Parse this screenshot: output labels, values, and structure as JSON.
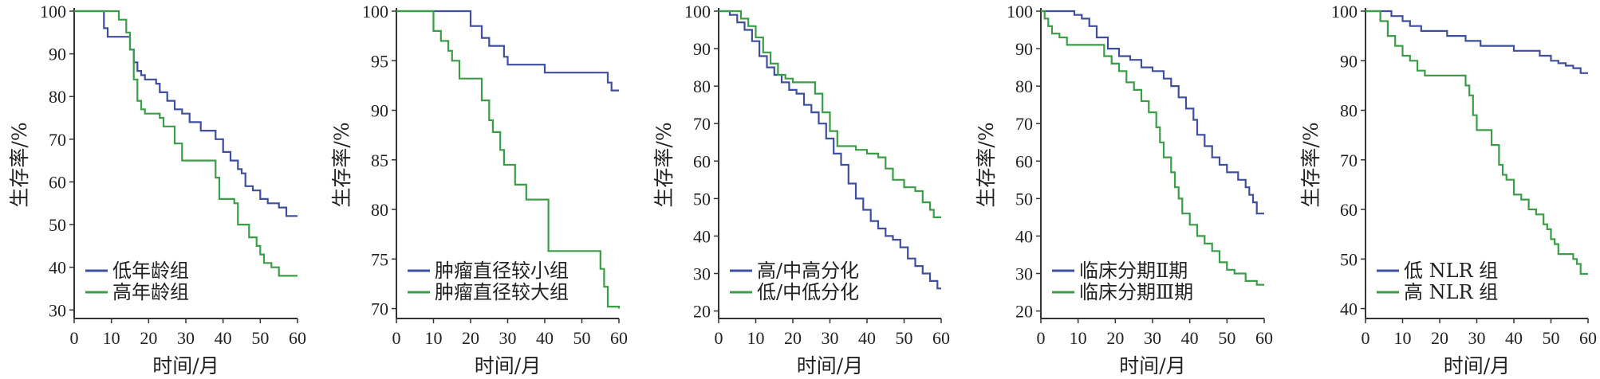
{
  "chart_data": [
    {
      "type": "line",
      "xlabel": "时间/月",
      "ylabel": "生存率/%",
      "xlim": [
        0,
        60
      ],
      "ylim": [
        28,
        100
      ],
      "xticks": [
        0,
        10,
        20,
        30,
        40,
        50,
        60
      ],
      "yticks": [
        30,
        40,
        50,
        60,
        70,
        80,
        90,
        100
      ],
      "legend_position": "bottom-left",
      "series": [
        {
          "name": "低年龄组",
          "color": "#3f4f9f",
          "x": [
            0,
            7,
            8,
            9,
            14,
            15,
            16,
            17,
            18,
            19,
            22,
            23,
            25,
            27,
            29,
            31,
            34,
            38,
            40,
            42,
            44,
            45,
            46,
            48,
            50,
            52,
            55,
            57,
            60
          ],
          "y": [
            100,
            100,
            96,
            94,
            94,
            91,
            88,
            86,
            85,
            84,
            83,
            81,
            79,
            77,
            76,
            74,
            72,
            70,
            67,
            65,
            63,
            62,
            59,
            58,
            56,
            55,
            54,
            52,
            52
          ]
        },
        {
          "name": "高年龄组",
          "color": "#3a9e47",
          "x": [
            0,
            10,
            12,
            14,
            15,
            16,
            17,
            18,
            19,
            23,
            24,
            27,
            29,
            37,
            38,
            39,
            43,
            44,
            47,
            49,
            50,
            51,
            53,
            55,
            60
          ],
          "y": [
            100,
            100,
            98,
            95,
            91,
            84,
            79,
            77,
            76,
            75,
            73,
            69,
            65,
            65,
            61,
            56,
            55,
            50,
            47,
            45,
            43,
            41,
            40,
            38,
            38
          ]
        }
      ]
    },
    {
      "type": "line",
      "xlabel": "时间/月",
      "ylabel": "生存率/%",
      "xlim": [
        0,
        60
      ],
      "ylim": [
        69,
        100
      ],
      "xticks": [
        0,
        10,
        20,
        30,
        40,
        50,
        60
      ],
      "yticks": [
        70,
        75,
        80,
        85,
        90,
        95,
        100
      ],
      "legend_position": "bottom-left",
      "series": [
        {
          "name": "肿瘤直径较小组",
          "color": "#3f4f9f",
          "x": [
            0,
            18,
            20,
            23,
            25,
            29,
            30,
            40,
            55,
            57,
            58,
            60
          ],
          "y": [
            100,
            100,
            98.5,
            97.3,
            96.5,
            95.4,
            94.6,
            93.8,
            93.8,
            92.8,
            92.0,
            92.0
          ]
        },
        {
          "name": "肿瘤直径较大组",
          "color": "#3a9e47",
          "x": [
            0,
            9,
            10,
            12,
            14,
            15,
            17,
            23,
            25,
            26,
            28,
            29,
            32,
            35,
            41,
            53,
            55,
            56,
            57,
            60
          ],
          "y": [
            100,
            100,
            98,
            97,
            96,
            95,
            93.2,
            91,
            89,
            87.8,
            86,
            84.5,
            82.5,
            81,
            75.8,
            75.8,
            74,
            72.2,
            70.2,
            70
          ]
        }
      ]
    },
    {
      "type": "line",
      "xlabel": "时间/月",
      "ylabel": "生存率/%",
      "xlim": [
        0,
        60
      ],
      "ylim": [
        18,
        100
      ],
      "xticks": [
        0,
        10,
        20,
        30,
        40,
        50,
        60
      ],
      "yticks": [
        20,
        30,
        40,
        50,
        60,
        70,
        80,
        90,
        100
      ],
      "legend_position": "bottom-left",
      "series": [
        {
          "name": "高/中高分化",
          "color": "#3f4f9f",
          "x": [
            0,
            3,
            5,
            7,
            9,
            11,
            13,
            15,
            17,
            19,
            21,
            23,
            25,
            27,
            29,
            31,
            33,
            35,
            37,
            39,
            41,
            43,
            45,
            47,
            49,
            51,
            53,
            55,
            57,
            59,
            60
          ],
          "y": [
            100,
            99,
            97,
            95,
            92,
            88,
            85,
            83,
            81,
            79,
            78,
            75,
            73,
            70,
            66,
            62,
            59,
            54,
            50,
            47,
            44,
            42,
            40,
            39,
            37,
            34,
            32,
            30,
            28,
            26,
            26
          ]
        },
        {
          "name": "低/中低分化",
          "color": "#3a9e47",
          "x": [
            0,
            4,
            6,
            8,
            10,
            12,
            14,
            16,
            18,
            20,
            24,
            26,
            28,
            30,
            32,
            37,
            40,
            43,
            45,
            47,
            50,
            53,
            55,
            57,
            58,
            60
          ],
          "y": [
            100,
            100,
            98,
            96,
            93,
            89,
            86,
            83,
            82,
            81,
            81,
            78,
            73,
            68,
            64,
            63,
            62,
            61,
            58,
            55,
            53,
            52,
            49,
            47,
            45,
            45
          ]
        }
      ]
    },
    {
      "type": "line",
      "xlabel": "时间/月",
      "ylabel": "生存率/%",
      "xlim": [
        0,
        60
      ],
      "ylim": [
        18,
        100
      ],
      "xticks": [
        0,
        10,
        20,
        30,
        40,
        50,
        60
      ],
      "yticks": [
        20,
        30,
        40,
        50,
        60,
        70,
        80,
        90,
        100
      ],
      "legend_position": "bottom-left",
      "series": [
        {
          "name": "临床分期Ⅱ期",
          "color": "#3f4f9f",
          "x": [
            0,
            7,
            9,
            11,
            13,
            15,
            18,
            21,
            24,
            27,
            30,
            33,
            35,
            37,
            39,
            41,
            42,
            44,
            46,
            48,
            50,
            53,
            55,
            56,
            57,
            58,
            60
          ],
          "y": [
            100,
            100,
            99,
            98,
            96,
            93,
            90,
            88,
            87,
            85,
            84,
            82,
            80,
            77,
            74,
            71,
            67,
            64,
            61,
            59,
            57,
            55,
            53,
            51,
            49,
            46,
            46
          ]
        },
        {
          "name": "临床分期Ⅲ期",
          "color": "#3a9e47",
          "x": [
            0,
            1,
            2,
            3,
            5,
            7,
            10,
            14,
            17,
            19,
            21,
            23,
            25,
            27,
            29,
            31,
            32,
            33,
            35,
            36,
            37,
            38,
            40,
            42,
            44,
            46,
            48,
            50,
            52,
            55,
            58,
            60
          ],
          "y": [
            100,
            98,
            96,
            94,
            93,
            91,
            91,
            91,
            88,
            86,
            84,
            81,
            79,
            76,
            73,
            69,
            65,
            61,
            57,
            53,
            50,
            46,
            43,
            40,
            38,
            36,
            33,
            31,
            30,
            28,
            27,
            27
          ]
        }
      ]
    },
    {
      "type": "line",
      "xlabel": "时间/月",
      "ylabel": "生存率/%",
      "xlim": [
        0,
        60
      ],
      "ylim": [
        38,
        100
      ],
      "xticks": [
        0,
        10,
        20,
        30,
        40,
        50,
        60
      ],
      "yticks": [
        40,
        50,
        60,
        70,
        80,
        90,
        100
      ],
      "legend_position": "bottom-left",
      "series": [
        {
          "name": "低 NLR 组",
          "color": "#3f4f9f",
          "x": [
            0,
            4,
            7,
            10,
            12,
            15,
            22,
            27,
            31,
            40,
            47,
            50,
            52,
            54,
            56,
            58,
            60
          ],
          "y": [
            100,
            100,
            99,
            98,
            97,
            96,
            95,
            94,
            93,
            92,
            91,
            90,
            89.5,
            89,
            88.5,
            87.5,
            87.5
          ]
        },
        {
          "name": "高 NLR 组",
          "color": "#3a9e47",
          "x": [
            0,
            3,
            4,
            6,
            8,
            10,
            12,
            14,
            16,
            20,
            26,
            27,
            28,
            29,
            30,
            32,
            34,
            36,
            37,
            38,
            40,
            42,
            44,
            46,
            48,
            49,
            50,
            51,
            52,
            54,
            56,
            57,
            58,
            60
          ],
          "y": [
            100,
            100,
            98,
            95,
            93,
            91,
            90,
            88,
            87,
            87,
            87,
            85,
            83,
            79,
            76,
            76,
            73,
            69,
            67,
            66,
            63,
            62,
            60,
            59,
            57,
            56,
            54,
            53,
            51,
            51,
            50,
            49,
            47,
            47
          ]
        }
      ]
    }
  ]
}
